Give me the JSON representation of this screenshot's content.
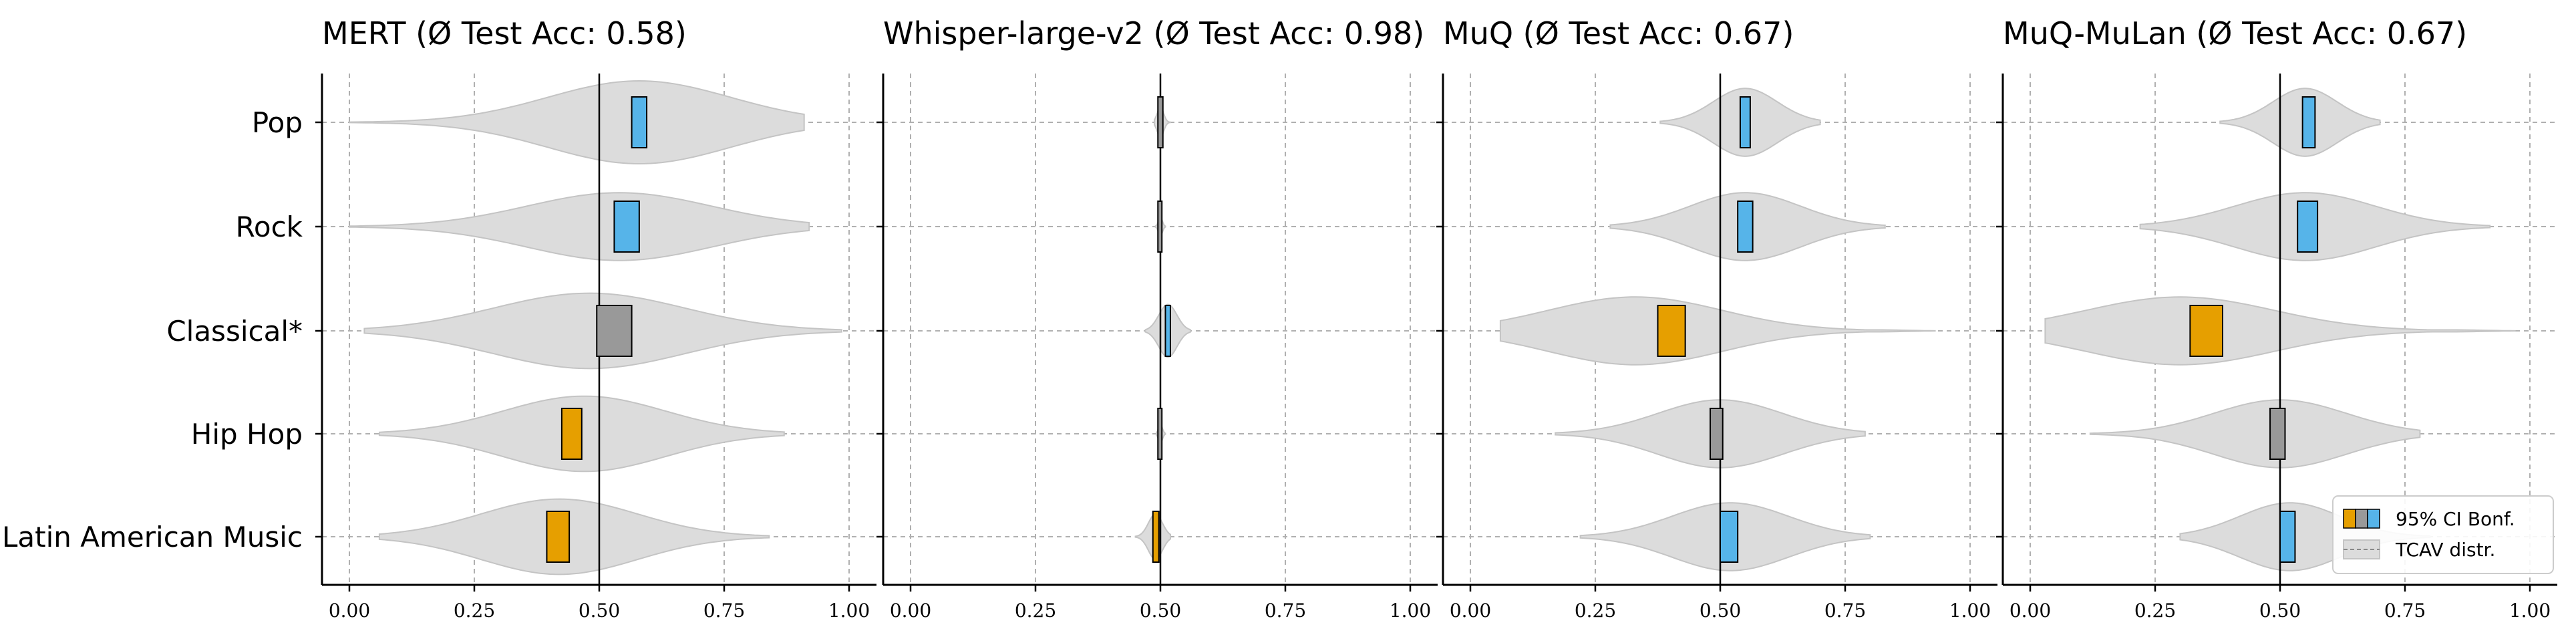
{
  "chart_data": {
    "type": "violin",
    "categories": [
      "Pop",
      "Rock",
      "Classical*",
      "Hip Hop",
      "Latin American Music"
    ],
    "xlim": [
      0.0,
      1.0
    ],
    "xticks": [
      "0.00",
      "0.25",
      "0.50",
      "0.75",
      "1.00"
    ],
    "reference_line": 0.5,
    "grid": true,
    "legend_position": "bottom-right",
    "legend": {
      "ci_label": "95% CI Bonf.",
      "distr_label": "TCAV distr."
    },
    "colors": {
      "above": "#56B4E9",
      "neutral": "#999999",
      "below": "#E69F00",
      "violin_fill": "#dcdcdc",
      "violin_edge": "#c4c4c4",
      "grid": "#b0b0b0"
    },
    "panels": [
      {
        "title": "MERT (Ø Test Acc: 0.58)",
        "series": [
          {
            "category": "Pop",
            "ci": [
              0.565,
              0.595
            ],
            "status": "above",
            "range": [
              0.0,
              0.91
            ],
            "mean": 0.58,
            "width": 0.55
          },
          {
            "category": "Rock",
            "ci": [
              0.53,
              0.58
            ],
            "status": "above",
            "range": [
              0.0,
              0.92
            ],
            "mean": 0.54,
            "width": 0.45
          },
          {
            "category": "Classical*",
            "ci": [
              0.495,
              0.565
            ],
            "status": "neutral",
            "range": [
              0.03,
              0.985
            ],
            "mean": 0.48,
            "width": 0.5
          },
          {
            "category": "Hip Hop",
            "ci": [
              0.425,
              0.465
            ],
            "status": "below",
            "range": [
              0.06,
              0.87
            ],
            "mean": 0.47,
            "width": 0.5
          },
          {
            "category": "Latin American Music",
            "ci": [
              0.395,
              0.44
            ],
            "status": "below",
            "range": [
              0.06,
              0.84
            ],
            "mean": 0.42,
            "width": 0.5
          }
        ]
      },
      {
        "title": "Whisper-large-v2 (Ø Test Acc: 0.98)",
        "series": [
          {
            "category": "Pop",
            "ci": [
              0.495,
              0.505
            ],
            "status": "neutral",
            "range": [
              0.488,
              0.52
            ],
            "mean": 0.5,
            "width": 0.2
          },
          {
            "category": "Rock",
            "ci": [
              0.495,
              0.503
            ],
            "status": "neutral",
            "range": [
              0.49,
              0.51
            ],
            "mean": 0.5,
            "width": 0.12
          },
          {
            "category": "Classical*",
            "ci": [
              0.51,
              0.52
            ],
            "status": "above",
            "range": [
              0.47,
              0.56
            ],
            "mean": 0.515,
            "width": 0.35
          },
          {
            "category": "Hip Hop",
            "ci": [
              0.495,
              0.503
            ],
            "status": "neutral",
            "range": [
              0.492,
              0.51
            ],
            "mean": 0.5,
            "width": 0.12
          },
          {
            "category": "Latin American Music",
            "ci": [
              0.485,
              0.497
            ],
            "status": "below",
            "range": [
              0.45,
              0.52
            ],
            "mean": 0.49,
            "width": 0.3
          }
        ]
      },
      {
        "title": "MuQ (Ø Test Acc: 0.67)",
        "series": [
          {
            "category": "Pop",
            "ci": [
              0.54,
              0.56
            ],
            "status": "above",
            "range": [
              0.38,
              0.7
            ],
            "mean": 0.55,
            "width": 0.45
          },
          {
            "category": "Rock",
            "ci": [
              0.535,
              0.565
            ],
            "status": "above",
            "range": [
              0.28,
              0.83
            ],
            "mean": 0.55,
            "width": 0.45
          },
          {
            "category": "Classical*",
            "ci": [
              0.375,
              0.43
            ],
            "status": "below",
            "range": [
              0.06,
              0.93
            ],
            "mean": 0.33,
            "width": 0.45
          },
          {
            "category": "Hip Hop",
            "ci": [
              0.48,
              0.505
            ],
            "status": "neutral",
            "range": [
              0.17,
              0.79
            ],
            "mean": 0.5,
            "width": 0.45
          },
          {
            "category": "Latin American Music",
            "ci": [
              0.5,
              0.535
            ],
            "status": "above",
            "range": [
              0.22,
              0.8
            ],
            "mean": 0.52,
            "width": 0.45
          }
        ]
      },
      {
        "title": "MuQ-MuLan (Ø Test Acc: 0.67)",
        "series": [
          {
            "category": "Pop",
            "ci": [
              0.545,
              0.57
            ],
            "status": "above",
            "range": [
              0.38,
              0.7
            ],
            "mean": 0.55,
            "width": 0.45
          },
          {
            "category": "Rock",
            "ci": [
              0.535,
              0.575
            ],
            "status": "above",
            "range": [
              0.22,
              0.92
            ],
            "mean": 0.55,
            "width": 0.45
          },
          {
            "category": "Classical*",
            "ci": [
              0.32,
              0.385
            ],
            "status": "below",
            "range": [
              0.03,
              0.97
            ],
            "mean": 0.3,
            "width": 0.45
          },
          {
            "category": "Hip Hop",
            "ci": [
              0.48,
              0.51
            ],
            "status": "neutral",
            "range": [
              0.12,
              0.78
            ],
            "mean": 0.5,
            "width": 0.45
          },
          {
            "category": "Latin American Music",
            "ci": [
              0.5,
              0.53
            ],
            "status": "above",
            "range": [
              0.3,
              0.8
            ],
            "mean": 0.52,
            "width": 0.45
          }
        ]
      }
    ]
  }
}
